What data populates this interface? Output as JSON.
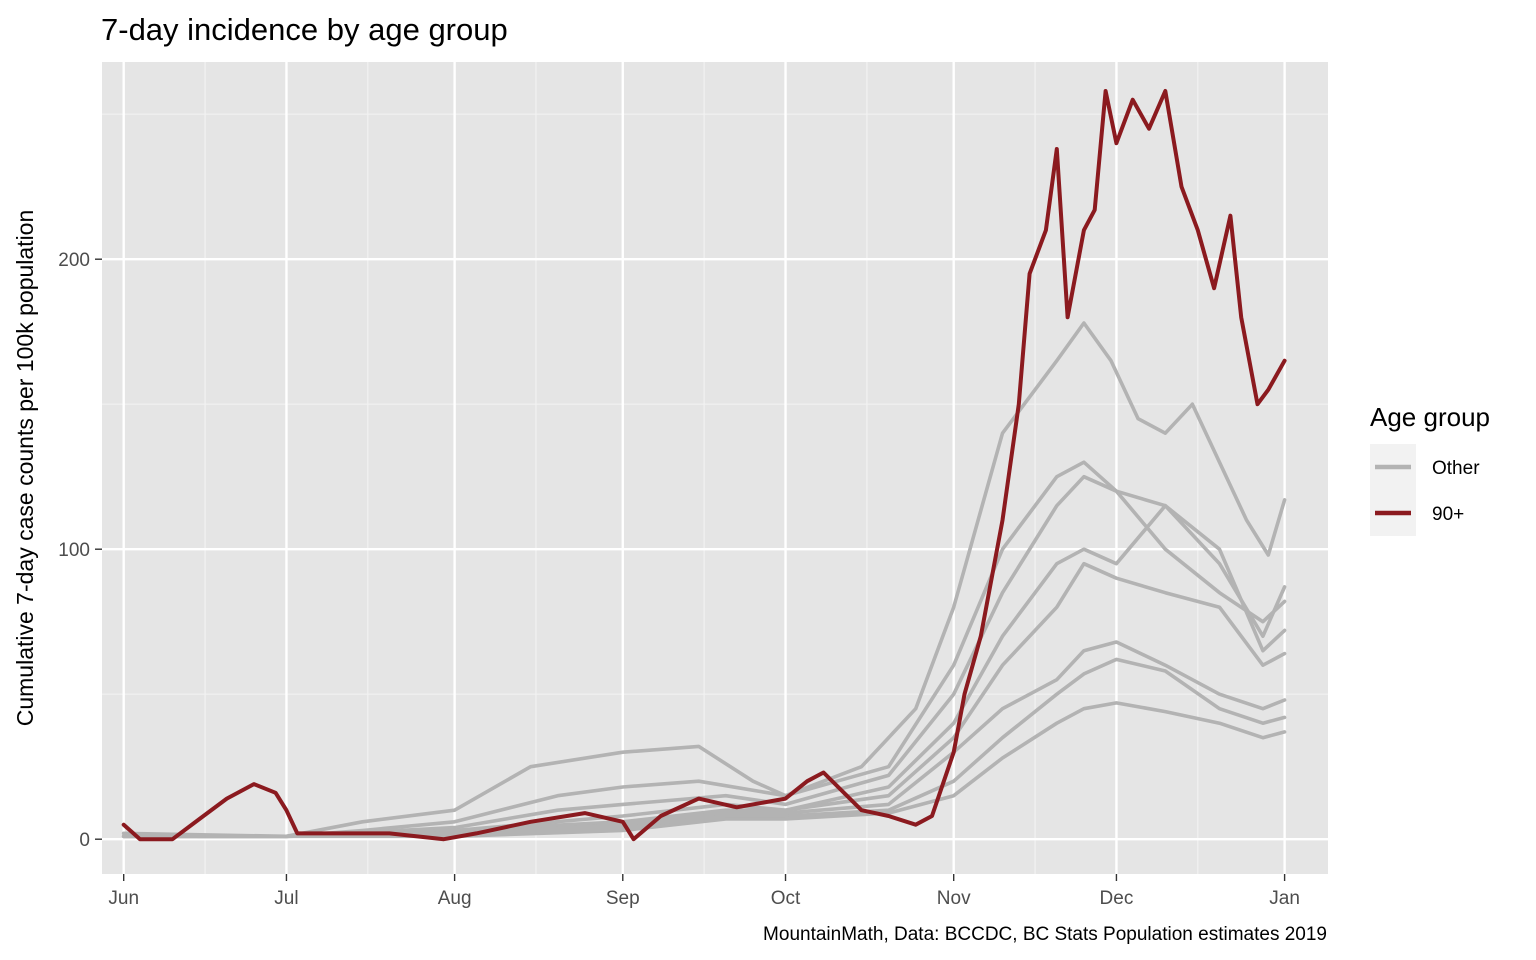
{
  "chart_data": {
    "type": "line",
    "title": "7-day incidence by age group",
    "xlabel": "",
    "ylabel": "Cumulative 7-day case counts per 100k population",
    "caption": "MountainMath, Data: BCCDC, BC Stats Population estimates 2019",
    "x_range": [
      "2020-05-28",
      "2021-01-09"
    ],
    "ylim": [
      -12,
      268
    ],
    "x_ticks": [
      {
        "date": "2020-06-01",
        "label": "Jun"
      },
      {
        "date": "2020-07-01",
        "label": "Jul"
      },
      {
        "date": "2020-08-01",
        "label": "Aug"
      },
      {
        "date": "2020-09-01",
        "label": "Sep"
      },
      {
        "date": "2020-10-01",
        "label": "Oct"
      },
      {
        "date": "2020-11-01",
        "label": "Nov"
      },
      {
        "date": "2020-12-01",
        "label": "Dec"
      },
      {
        "date": "2021-01-01",
        "label": "Jan"
      }
    ],
    "y_ticks": [
      0,
      100,
      200
    ],
    "grid": true,
    "legend_position": "right",
    "legend_title": "Age group",
    "legend": [
      {
        "label": "Other",
        "color": "#b3b3b3"
      },
      {
        "label": "90+",
        "color": "#8b1a1f"
      }
    ],
    "series": [
      {
        "group": "Other",
        "points": [
          [
            "2020-06-01",
            2
          ],
          [
            "2020-06-15",
            1
          ],
          [
            "2020-07-01",
            1
          ],
          [
            "2020-07-15",
            6
          ],
          [
            "2020-08-01",
            10
          ],
          [
            "2020-08-15",
            25
          ],
          [
            "2020-09-01",
            30
          ],
          [
            "2020-09-15",
            32
          ],
          [
            "2020-09-25",
            20
          ],
          [
            "2020-10-01",
            15
          ],
          [
            "2020-10-15",
            25
          ],
          [
            "2020-10-25",
            45
          ],
          [
            "2020-11-01",
            80
          ],
          [
            "2020-11-10",
            140
          ],
          [
            "2020-11-20",
            165
          ],
          [
            "2020-11-25",
            178
          ],
          [
            "2020-11-30",
            165
          ],
          [
            "2020-12-05",
            145
          ],
          [
            "2020-12-10",
            140
          ],
          [
            "2020-12-15",
            150
          ],
          [
            "2020-12-20",
            130
          ],
          [
            "2020-12-25",
            110
          ],
          [
            "2020-12-29",
            98
          ],
          [
            "2021-01-01",
            117
          ]
        ]
      },
      {
        "group": "Other",
        "points": [
          [
            "2020-06-01",
            2
          ],
          [
            "2020-07-01",
            1
          ],
          [
            "2020-07-15",
            3
          ],
          [
            "2020-08-01",
            6
          ],
          [
            "2020-08-20",
            15
          ],
          [
            "2020-09-01",
            18
          ],
          [
            "2020-09-15",
            20
          ],
          [
            "2020-10-01",
            15
          ],
          [
            "2020-10-20",
            25
          ],
          [
            "2020-11-01",
            60
          ],
          [
            "2020-11-10",
            100
          ],
          [
            "2020-11-20",
            125
          ],
          [
            "2020-11-25",
            130
          ],
          [
            "2020-12-01",
            120
          ],
          [
            "2020-12-10",
            115
          ],
          [
            "2020-12-20",
            95
          ],
          [
            "2020-12-28",
            70
          ],
          [
            "2021-01-01",
            87
          ]
        ]
      },
      {
        "group": "Other",
        "points": [
          [
            "2020-06-01",
            1
          ],
          [
            "2020-07-01",
            1
          ],
          [
            "2020-08-01",
            4
          ],
          [
            "2020-08-20",
            10
          ],
          [
            "2020-09-01",
            12
          ],
          [
            "2020-09-20",
            15
          ],
          [
            "2020-10-01",
            12
          ],
          [
            "2020-10-20",
            22
          ],
          [
            "2020-11-01",
            50
          ],
          [
            "2020-11-10",
            85
          ],
          [
            "2020-11-20",
            115
          ],
          [
            "2020-11-25",
            125
          ],
          [
            "2020-12-01",
            120
          ],
          [
            "2020-12-10",
            100
          ],
          [
            "2020-12-20",
            85
          ],
          [
            "2020-12-28",
            75
          ],
          [
            "2021-01-01",
            82
          ]
        ]
      },
      {
        "group": "Other",
        "points": [
          [
            "2020-06-01",
            1
          ],
          [
            "2020-07-01",
            1
          ],
          [
            "2020-08-01",
            3
          ],
          [
            "2020-09-01",
            8
          ],
          [
            "2020-09-20",
            12
          ],
          [
            "2020-10-01",
            10
          ],
          [
            "2020-10-20",
            18
          ],
          [
            "2020-11-01",
            40
          ],
          [
            "2020-11-10",
            70
          ],
          [
            "2020-11-20",
            95
          ],
          [
            "2020-11-25",
            100
          ],
          [
            "2020-12-01",
            95
          ],
          [
            "2020-12-10",
            115
          ],
          [
            "2020-12-20",
            100
          ],
          [
            "2020-12-28",
            65
          ],
          [
            "2021-01-01",
            72
          ]
        ]
      },
      {
        "group": "Other",
        "points": [
          [
            "2020-06-01",
            1
          ],
          [
            "2020-07-01",
            1
          ],
          [
            "2020-08-01",
            3
          ],
          [
            "2020-09-01",
            6
          ],
          [
            "2020-09-20",
            10
          ],
          [
            "2020-10-01",
            10
          ],
          [
            "2020-10-20",
            15
          ],
          [
            "2020-11-01",
            35
          ],
          [
            "2020-11-10",
            60
          ],
          [
            "2020-11-20",
            80
          ],
          [
            "2020-11-25",
            95
          ],
          [
            "2020-12-01",
            90
          ],
          [
            "2020-12-10",
            85
          ],
          [
            "2020-12-20",
            80
          ],
          [
            "2020-12-28",
            60
          ],
          [
            "2021-01-01",
            64
          ]
        ]
      },
      {
        "group": "Other",
        "points": [
          [
            "2020-06-01",
            1
          ],
          [
            "2020-07-01",
            1
          ],
          [
            "2020-08-01",
            2
          ],
          [
            "2020-09-01",
            5
          ],
          [
            "2020-09-20",
            9
          ],
          [
            "2020-10-01",
            9
          ],
          [
            "2020-10-20",
            12
          ],
          [
            "2020-11-01",
            30
          ],
          [
            "2020-11-10",
            45
          ],
          [
            "2020-11-20",
            55
          ],
          [
            "2020-11-25",
            65
          ],
          [
            "2020-12-01",
            68
          ],
          [
            "2020-12-10",
            60
          ],
          [
            "2020-12-20",
            50
          ],
          [
            "2020-12-28",
            45
          ],
          [
            "2021-01-01",
            48
          ]
        ]
      },
      {
        "group": "Other",
        "points": [
          [
            "2020-06-01",
            1
          ],
          [
            "2020-07-01",
            1
          ],
          [
            "2020-08-01",
            2
          ],
          [
            "2020-09-01",
            4
          ],
          [
            "2020-09-20",
            8
          ],
          [
            "2020-10-01",
            8
          ],
          [
            "2020-10-20",
            10
          ],
          [
            "2020-11-01",
            20
          ],
          [
            "2020-11-10",
            35
          ],
          [
            "2020-11-20",
            50
          ],
          [
            "2020-11-25",
            57
          ],
          [
            "2020-12-01",
            62
          ],
          [
            "2020-12-10",
            58
          ],
          [
            "2020-12-20",
            45
          ],
          [
            "2020-12-28",
            40
          ],
          [
            "2021-01-01",
            42
          ]
        ]
      },
      {
        "group": "Other",
        "points": [
          [
            "2020-06-01",
            1
          ],
          [
            "2020-07-01",
            1
          ],
          [
            "2020-08-01",
            1
          ],
          [
            "2020-09-01",
            3
          ],
          [
            "2020-09-20",
            7
          ],
          [
            "2020-10-01",
            7
          ],
          [
            "2020-10-20",
            9
          ],
          [
            "2020-11-01",
            15
          ],
          [
            "2020-11-10",
            28
          ],
          [
            "2020-11-20",
            40
          ],
          [
            "2020-11-25",
            45
          ],
          [
            "2020-12-01",
            47
          ],
          [
            "2020-12-10",
            44
          ],
          [
            "2020-12-20",
            40
          ],
          [
            "2020-12-28",
            35
          ],
          [
            "2021-01-01",
            37
          ]
        ]
      },
      {
        "group": "90+",
        "points": [
          [
            "2020-06-01",
            5
          ],
          [
            "2020-06-04",
            0
          ],
          [
            "2020-06-10",
            0
          ],
          [
            "2020-06-15",
            7
          ],
          [
            "2020-06-20",
            14
          ],
          [
            "2020-06-25",
            19
          ],
          [
            "2020-06-29",
            16
          ],
          [
            "2020-07-01",
            10
          ],
          [
            "2020-07-03",
            2
          ],
          [
            "2020-07-10",
            2
          ],
          [
            "2020-07-20",
            2
          ],
          [
            "2020-07-30",
            0
          ],
          [
            "2020-08-05",
            2
          ],
          [
            "2020-08-15",
            6
          ],
          [
            "2020-08-25",
            9
          ],
          [
            "2020-09-01",
            6
          ],
          [
            "2020-09-03",
            0
          ],
          [
            "2020-09-08",
            8
          ],
          [
            "2020-09-15",
            14
          ],
          [
            "2020-09-22",
            11
          ],
          [
            "2020-10-01",
            14
          ],
          [
            "2020-10-05",
            20
          ],
          [
            "2020-10-08",
            23
          ],
          [
            "2020-10-15",
            10
          ],
          [
            "2020-10-20",
            8
          ],
          [
            "2020-10-25",
            5
          ],
          [
            "2020-10-28",
            8
          ],
          [
            "2020-11-01",
            30
          ],
          [
            "2020-11-03",
            50
          ],
          [
            "2020-11-06",
            70
          ],
          [
            "2020-11-10",
            110
          ],
          [
            "2020-11-13",
            150
          ],
          [
            "2020-11-15",
            195
          ],
          [
            "2020-11-18",
            210
          ],
          [
            "2020-11-20",
            238
          ],
          [
            "2020-11-22",
            180
          ],
          [
            "2020-11-25",
            210
          ],
          [
            "2020-11-27",
            217
          ],
          [
            "2020-11-29",
            258
          ],
          [
            "2020-12-01",
            240
          ],
          [
            "2020-12-04",
            255
          ],
          [
            "2020-12-07",
            245
          ],
          [
            "2020-12-10",
            258
          ],
          [
            "2020-12-13",
            225
          ],
          [
            "2020-12-16",
            210
          ],
          [
            "2020-12-19",
            190
          ],
          [
            "2020-12-22",
            215
          ],
          [
            "2020-12-24",
            180
          ],
          [
            "2020-12-27",
            150
          ],
          [
            "2020-12-29",
            155
          ],
          [
            "2021-01-01",
            165
          ]
        ]
      }
    ]
  }
}
